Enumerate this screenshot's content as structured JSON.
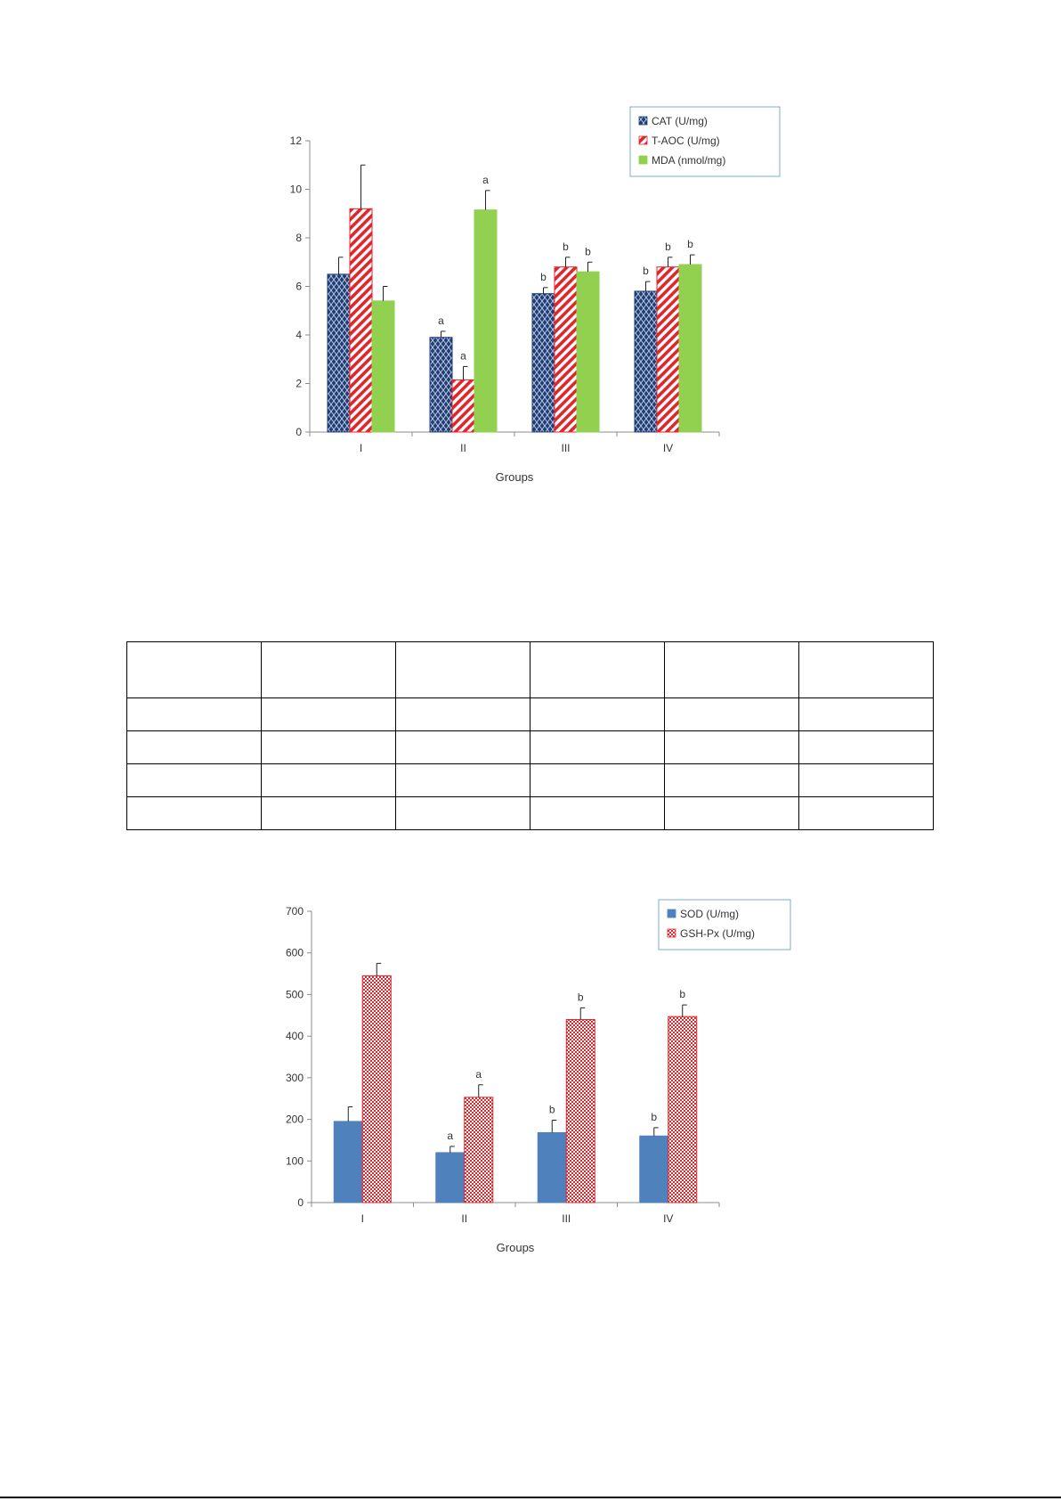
{
  "chart_data": [
    {
      "type": "bar",
      "categories": [
        "I",
        "II",
        "III",
        "IV"
      ],
      "xlabel": "Groups",
      "ylabel": "",
      "ylim": [
        0,
        12
      ],
      "yticks": [
        0,
        2,
        4,
        6,
        8,
        10,
        12
      ],
      "grid": false,
      "legend_position": "top-right",
      "series": [
        {
          "name": "CAT (U/mg)",
          "color": "#1f3f7a",
          "pattern": "diamond",
          "values": [
            6.5,
            3.9,
            5.7,
            5.8
          ],
          "errors": [
            0.7,
            0.25,
            0.25,
            0.4
          ],
          "annotations": [
            "",
            "a",
            "b",
            "b"
          ]
        },
        {
          "name": "T-AOC (U/mg)",
          "color": "#e0262b",
          "pattern": "diagonal",
          "values": [
            9.2,
            2.15,
            6.8,
            6.8
          ],
          "errors": [
            1.8,
            0.55,
            0.4,
            0.4
          ],
          "annotations": [
            "",
            "a",
            "b",
            "b"
          ]
        },
        {
          "name": "MDA (nmol/mg)",
          "color": "#92d050",
          "pattern": "solid",
          "values": [
            5.4,
            9.15,
            6.6,
            6.9
          ],
          "errors": [
            0.6,
            0.8,
            0.4,
            0.4
          ],
          "annotations": [
            "",
            "a",
            "b",
            "b"
          ]
        }
      ]
    },
    {
      "type": "bar",
      "categories": [
        "I",
        "II",
        "III",
        "IV"
      ],
      "xlabel": "Groups",
      "ylabel": "",
      "ylim": [
        0,
        700
      ],
      "yticks": [
        0,
        100,
        200,
        300,
        400,
        500,
        600,
        700
      ],
      "grid": false,
      "legend_position": "top-right",
      "series": [
        {
          "name": "SOD (U/mg)",
          "color": "#4f81bd",
          "pattern": "solid",
          "values": [
            195,
            120,
            168,
            160
          ],
          "errors": [
            35,
            15,
            30,
            20
          ],
          "annotations": [
            "",
            "a",
            "b",
            "b"
          ]
        },
        {
          "name": "GSH-Px (U/mg)",
          "color": "#e0262b",
          "pattern": "check",
          "values": [
            545,
            253,
            440,
            447
          ],
          "errors": [
            30,
            30,
            28,
            28
          ],
          "annotations": [
            "",
            "a",
            "b",
            "b"
          ]
        }
      ]
    }
  ],
  "table": {
    "columns": 6,
    "rows": [
      [
        "",
        "",
        "",
        "",
        "",
        ""
      ],
      [
        "",
        "",
        "",
        "",
        "",
        ""
      ],
      [
        "",
        "",
        "",
        "",
        "",
        ""
      ],
      [
        "",
        "",
        "",
        "",
        "",
        ""
      ],
      [
        "",
        "",
        "",
        "",
        "",
        ""
      ]
    ]
  }
}
